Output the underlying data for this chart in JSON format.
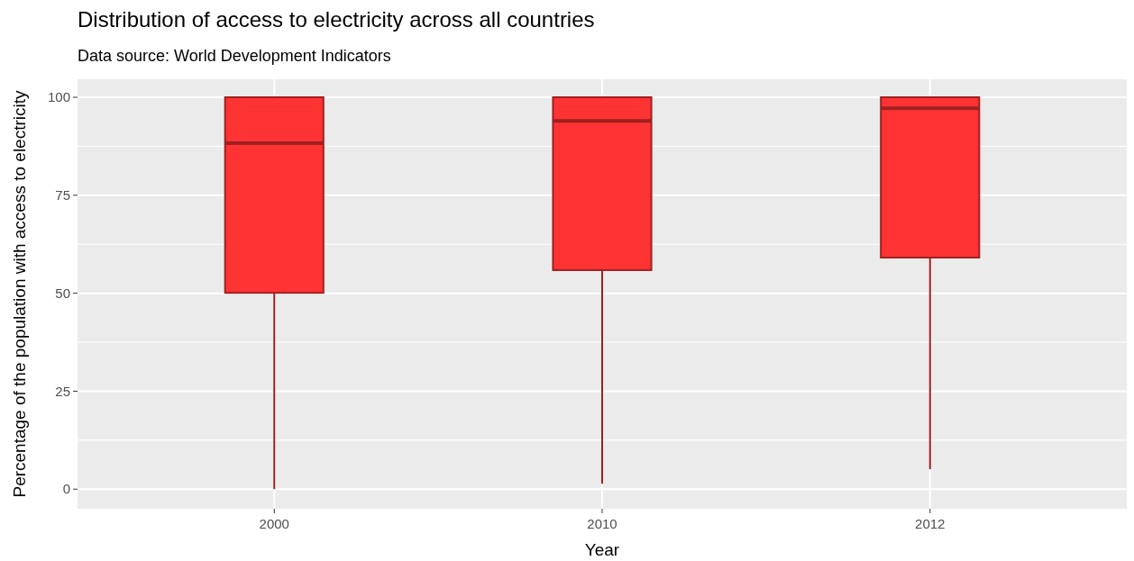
{
  "chart_data": {
    "type": "box",
    "title": "Distribution of access to electricity across all countries",
    "subtitle": "Data source: World Development Indicators",
    "xlabel": "Year",
    "ylabel": "Percentage of the population with access to electricity",
    "categories": [
      "2000",
      "2010",
      "2012"
    ],
    "color": "#ff3333",
    "boxes": [
      {
        "low": 0,
        "q1": 50.1,
        "median": 88.3,
        "q3": 100,
        "high": 100
      },
      {
        "low": 1.4,
        "q1": 55.9,
        "median": 94.0,
        "q3": 100,
        "high": 100
      },
      {
        "low": 5.1,
        "q1": 59.1,
        "median": 97.2,
        "q3": 100,
        "high": 100
      }
    ],
    "ylim": [
      -5,
      104.6
    ],
    "yticks": [
      0,
      25,
      50,
      75,
      100
    ],
    "grid": true
  }
}
